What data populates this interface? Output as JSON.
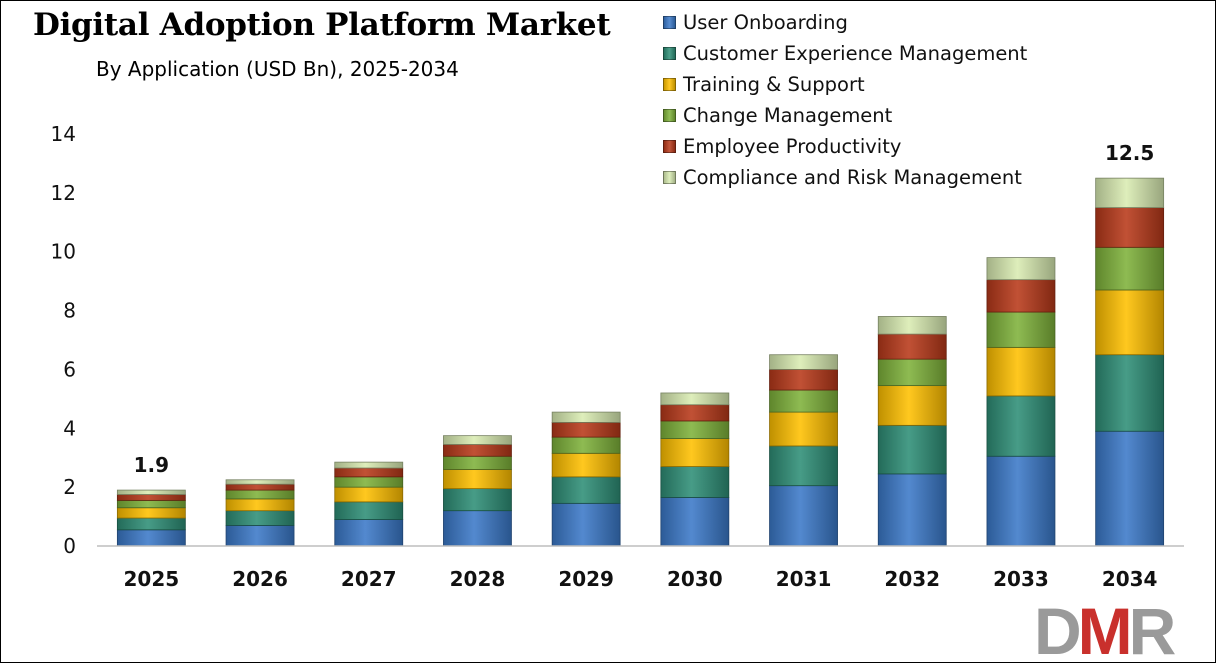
{
  "chart_data": {
    "type": "bar",
    "stacked": true,
    "title": "Digital Adoption Platform Market",
    "subtitle": "By Application (USD Bn), 2025-2034",
    "categories": [
      "2025",
      "2026",
      "2027",
      "2028",
      "2029",
      "2030",
      "2031",
      "2032",
      "2033",
      "2034"
    ],
    "series": [
      {
        "name": "User Onboarding",
        "color": "#3b79c9",
        "values": [
          0.55,
          0.7,
          0.9,
          1.2,
          1.45,
          1.65,
          2.05,
          2.45,
          3.05,
          3.9
        ]
      },
      {
        "name": "Customer Experience Management",
        "color": "#2e8f77",
        "values": [
          0.4,
          0.5,
          0.6,
          0.75,
          0.9,
          1.05,
          1.35,
          1.65,
          2.05,
          2.6
        ]
      },
      {
        "name": "Training & Support",
        "color": "#ffc000",
        "values": [
          0.35,
          0.4,
          0.5,
          0.65,
          0.8,
          0.95,
          1.15,
          1.35,
          1.65,
          2.2
        ]
      },
      {
        "name": "Change Management",
        "color": "#7fb23a",
        "values": [
          0.25,
          0.3,
          0.35,
          0.45,
          0.55,
          0.6,
          0.75,
          0.9,
          1.2,
          1.45
        ]
      },
      {
        "name": "Employee Productivity",
        "color": "#b8391a",
        "values": [
          0.2,
          0.2,
          0.3,
          0.4,
          0.5,
          0.55,
          0.7,
          0.85,
          1.1,
          1.35
        ]
      },
      {
        "name": "Compliance and Risk Management",
        "color": "#d9ecb2",
        "values": [
          0.15,
          0.15,
          0.2,
          0.3,
          0.35,
          0.4,
          0.5,
          0.6,
          0.75,
          1.0
        ]
      }
    ],
    "data_labels": [
      {
        "category": "2025",
        "text": "1.9"
      },
      {
        "category": "2034",
        "text": "12.5"
      }
    ],
    "xlabel": "",
    "ylabel": "",
    "ylim": [
      0,
      14
    ],
    "yticks": [
      "0",
      "2",
      "4",
      "6",
      "8",
      "10",
      "12",
      "14"
    ],
    "grid": false,
    "legend_position": "top-right"
  },
  "brand": {
    "logo_text_left": "D",
    "logo_text_mid": "M",
    "logo_text_right": "R",
    "colors": {
      "gray": "#9a9a9a",
      "red": "#c9302c"
    }
  }
}
